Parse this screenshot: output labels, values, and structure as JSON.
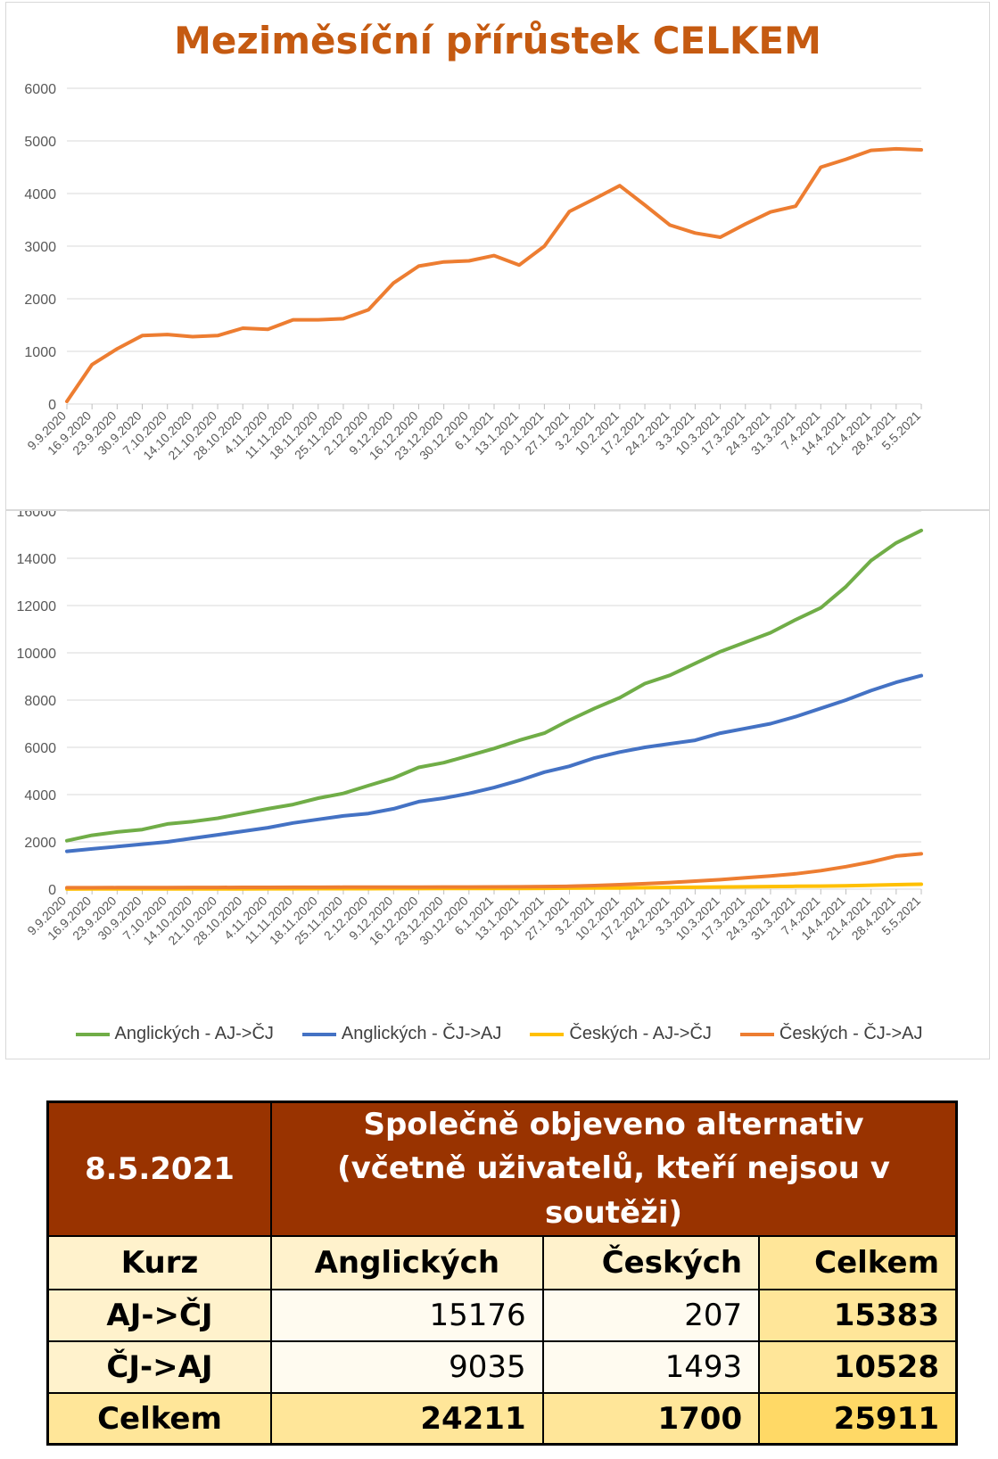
{
  "chart_data": [
    {
      "type": "line",
      "title": "Meziměsíční přírůstek CELKEM",
      "x_labels": [
        "9.9.2020",
        "16.9.2020",
        "23.9.2020",
        "30.9.2020",
        "7.10.2020",
        "14.10.2020",
        "21.10.2020",
        "28.10.2020",
        "4.11.2020",
        "11.11.2020",
        "18.11.2020",
        "25.11.2020",
        "2.12.2020",
        "9.12.2020",
        "16.12.2020",
        "23.12.2020",
        "30.12.2020",
        "6.1.2021",
        "13.1.2021",
        "20.1.2021",
        "27.1.2021",
        "3.2.2021",
        "10.2.2021",
        "17.2.2021",
        "24.2.2021",
        "3.3.2021",
        "10.3.2021",
        "17.3.2021",
        "24.3.2021",
        "31.3.2021",
        "7.4.2021",
        "14.4.2021",
        "21.4.2021",
        "28.4.2021",
        "5.5.2021"
      ],
      "ylim": [
        0,
        6000
      ],
      "yticks": [
        0,
        1000,
        2000,
        3000,
        4000,
        5000,
        6000
      ],
      "grid": true,
      "series": [
        {
          "color": "#ed7d31",
          "values": [
            50,
            750,
            1050,
            1300,
            1320,
            1280,
            1300,
            1440,
            1420,
            1600,
            1600,
            1620,
            1790,
            2300,
            2620,
            2700,
            2720,
            2820,
            2640,
            3000,
            3660,
            3900,
            4150,
            3780,
            3400,
            3250,
            3170,
            3420,
            3650,
            3760,
            4500,
            4650,
            4820,
            4850,
            4830
          ]
        }
      ]
    },
    {
      "type": "line",
      "x_labels": [
        "9.9.2020",
        "16.9.2020",
        "23.9.2020",
        "30.9.2020",
        "7.10.2020",
        "14.10.2020",
        "21.10.2020",
        "28.10.2020",
        "4.11.2020",
        "11.11.2020",
        "18.11.2020",
        "25.11.2020",
        "2.12.2020",
        "9.12.2020",
        "16.12.2020",
        "23.12.2020",
        "30.12.2020",
        "6.1.2021",
        "13.1.2021",
        "20.1.2021",
        "27.1.2021",
        "3.2.2021",
        "10.2.2021",
        "17.2.2021",
        "24.2.2021",
        "3.3.2021",
        "10.3.2021",
        "17.3.2021",
        "24.3.2021",
        "31.3.2021",
        "7.4.2021",
        "14.4.2021",
        "21.4.2021",
        "28.4.2021",
        "5.5.2021"
      ],
      "ylim": [
        0,
        16000
      ],
      "yticks": [
        0,
        2000,
        4000,
        6000,
        8000,
        10000,
        12000,
        14000,
        16000
      ],
      "grid": true,
      "legend": "bottom",
      "series": [
        {
          "name": "Anglických - AJ->ČJ",
          "color": "#70ad47",
          "values": [
            2050,
            2280,
            2420,
            2520,
            2760,
            2860,
            3000,
            3200,
            3400,
            3580,
            3850,
            4050,
            4380,
            4700,
            5150,
            5350,
            5650,
            5950,
            6300,
            6600,
            7150,
            7650,
            8100,
            8700,
            9050,
            9550,
            10050,
            10450,
            10850,
            11400,
            11900,
            12800,
            13900,
            14650,
            15176
          ]
        },
        {
          "name": "Anglických - ČJ->AJ",
          "color": "#4472c4",
          "values": [
            1600,
            1700,
            1800,
            1900,
            2000,
            2150,
            2300,
            2450,
            2600,
            2800,
            2950,
            3100,
            3200,
            3400,
            3700,
            3850,
            4050,
            4300,
            4600,
            4950,
            5200,
            5550,
            5800,
            6000,
            6150,
            6300,
            6600,
            6800,
            7000,
            7300,
            7650,
            8000,
            8400,
            8750,
            9035
          ]
        },
        {
          "name": "Českých - AJ->ČJ",
          "color": "#ffc000",
          "values": [
            5,
            6,
            7,
            8,
            9,
            10,
            12,
            13,
            14,
            16,
            17,
            19,
            20,
            22,
            24,
            26,
            28,
            30,
            32,
            35,
            40,
            45,
            50,
            60,
            70,
            80,
            90,
            100,
            110,
            120,
            130,
            145,
            165,
            190,
            207
          ]
        },
        {
          "name": "Českých - ČJ->AJ",
          "color": "#ed7d31",
          "values": [
            60,
            62,
            64,
            66,
            68,
            70,
            72,
            74,
            76,
            78,
            80,
            82,
            84,
            86,
            88,
            90,
            92,
            96,
            100,
            110,
            120,
            150,
            190,
            230,
            280,
            340,
            400,
            480,
            560,
            650,
            780,
            950,
            1150,
            1400,
            1493
          ]
        }
      ]
    }
  ],
  "table": {
    "date": "8.5.2021",
    "title_line1": "Společně objeveno alternativ",
    "title_line2": "(včetně uživatelů, kteří nejsou v soutěži)",
    "col_kurz": "Kurz",
    "col_en": "Anglických",
    "col_cz": "Českých",
    "col_total": "Celkem",
    "rows": [
      {
        "label": "AJ->ČJ",
        "en": "15176",
        "cz": "207",
        "total": "15383"
      },
      {
        "label": "ČJ->AJ",
        "en": "9035",
        "cz": "1493",
        "total": "10528"
      },
      {
        "label": "Celkem",
        "en": "24211",
        "cz": "1700",
        "total": "25911"
      }
    ]
  }
}
